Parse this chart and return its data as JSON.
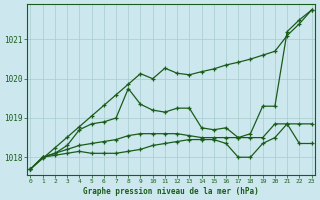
{
  "title": "Graphe pression niveau de la mer (hPa)",
  "bg_color": "#cce8ee",
  "line_color": "#1a5c1a",
  "grid_color": "#a8cccc",
  "x_ticks": [
    0,
    1,
    2,
    3,
    4,
    5,
    6,
    7,
    8,
    9,
    10,
    11,
    12,
    13,
    14,
    15,
    16,
    17,
    18,
    19,
    20,
    21,
    22,
    23
  ],
  "y_ticks": [
    1018,
    1019,
    1020,
    1021
  ],
  "ylim": [
    1017.55,
    1021.9
  ],
  "xlim": [
    -0.3,
    23.3
  ],
  "series_straight": [
    1017.7,
    1017.97,
    1018.24,
    1018.51,
    1018.78,
    1019.05,
    1019.32,
    1019.59,
    1019.86,
    1020.13,
    1020.0,
    1020.27,
    1020.14,
    1020.1,
    1020.18,
    1020.25,
    1020.35,
    1020.42,
    1020.5,
    1020.6,
    1020.7,
    1021.1,
    1021.4,
    1021.75
  ],
  "series_peak": [
    1017.7,
    1018.0,
    1018.1,
    1018.3,
    1018.7,
    1018.85,
    1018.9,
    1019.0,
    1019.75,
    1019.35,
    1019.2,
    1019.15,
    1019.25,
    1019.25,
    1018.75,
    1018.7,
    1018.75,
    1018.5,
    1018.6,
    1019.3,
    1019.3,
    1021.2,
    1021.5,
    1021.75
  ],
  "series_mid": [
    1017.7,
    1018.0,
    1018.1,
    1018.2,
    1018.3,
    1018.35,
    1018.4,
    1018.45,
    1018.55,
    1018.6,
    1018.6,
    1018.6,
    1018.6,
    1018.55,
    1018.5,
    1018.5,
    1018.5,
    1018.5,
    1018.5,
    1018.5,
    1018.85,
    1018.85,
    1018.85,
    1018.85
  ],
  "series_dip": [
    1017.7,
    1018.0,
    1018.05,
    1018.1,
    1018.15,
    1018.1,
    1018.1,
    1018.1,
    1018.15,
    1018.2,
    1018.3,
    1018.35,
    1018.4,
    1018.45,
    1018.45,
    1018.45,
    1018.35,
    1018.0,
    1018.0,
    1018.35,
    1018.5,
    1018.85,
    1018.35,
    1018.35
  ]
}
